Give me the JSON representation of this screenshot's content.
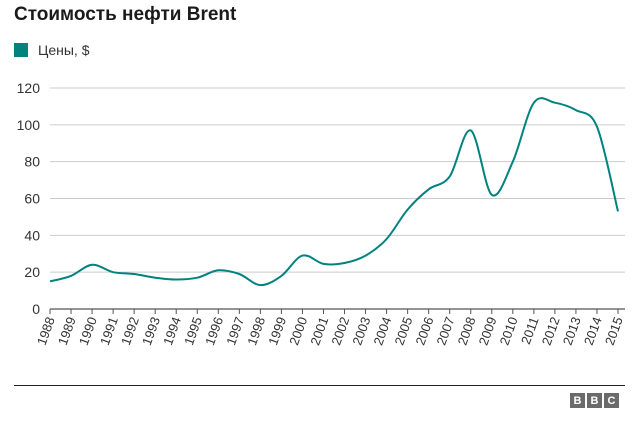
{
  "header": {
    "title": "Стоимость нефти Brent"
  },
  "legend": {
    "label": "Цены, $",
    "color": "#00827f"
  },
  "logo": {
    "letters": [
      "B",
      "B",
      "C"
    ]
  },
  "chart_data": {
    "type": "line",
    "title": "Стоимость нефти Brent",
    "xlabel": "",
    "ylabel": "",
    "ylim": [
      0,
      120
    ],
    "yticks": [
      0,
      20,
      40,
      60,
      80,
      100,
      120
    ],
    "xticks": [
      "1988",
      "1989",
      "1990",
      "1991",
      "1992",
      "1993",
      "1994",
      "1995",
      "1996",
      "1997",
      "1998",
      "1999",
      "2000",
      "2001",
      "2002",
      "2003",
      "2004",
      "2005",
      "2006",
      "2007",
      "2008",
      "2009",
      "2010",
      "2011",
      "2012",
      "2013",
      "2014",
      "2015"
    ],
    "grid": true,
    "legend_position": "top-left",
    "series": [
      {
        "name": "Цены, $",
        "color": "#00827f",
        "x": [
          1988,
          1989,
          1990,
          1991,
          1992,
          1993,
          1994,
          1995,
          1996,
          1997,
          1998,
          1999,
          2000,
          2001,
          2002,
          2003,
          2004,
          2005,
          2006,
          2007,
          2008,
          2009,
          2010,
          2011,
          2012,
          2013,
          2014,
          2015
        ],
        "values": [
          15,
          18,
          24,
          20,
          19,
          17,
          16,
          17,
          21,
          19,
          13,
          18,
          29,
          24.5,
          25,
          29,
          38,
          54,
          65,
          72,
          97,
          62,
          80,
          112,
          112,
          108,
          99,
          53
        ]
      }
    ]
  }
}
